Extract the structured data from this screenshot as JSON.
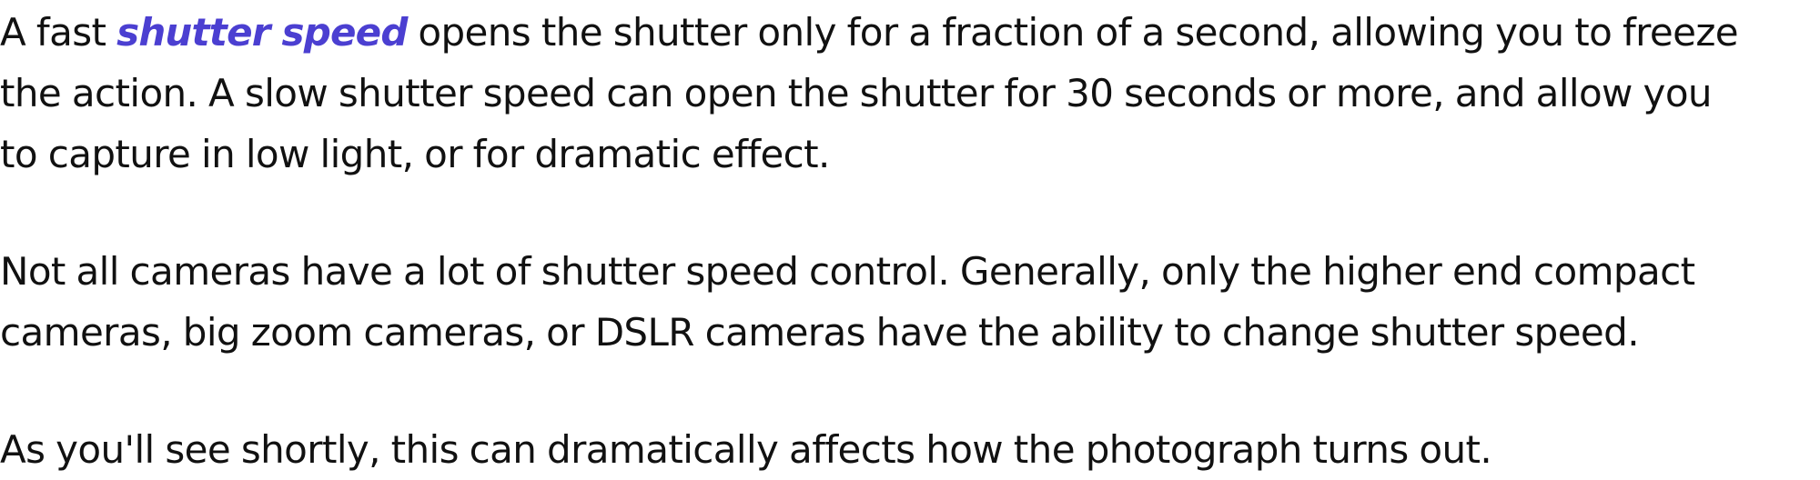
{
  "article": {
    "p1": {
      "lead": "A fast",
      "highlight": "shutter speed",
      "highlight_color": "#4b3fd1",
      "line1_rest": "opens the shutter only for a fraction of a second, allowing you to freeze",
      "line2": "the action. A slow shutter speed can open the shutter for 30 seconds or more, and allow you",
      "line3": "to capture in low light, or for dramatic effect."
    },
    "p2": {
      "line1": "Not all cameras have a lot of shutter speed control. Generally, only the higher end compact",
      "line2": "cameras, big zoom cameras, or DSLR cameras have the ability to change shutter speed."
    },
    "p3": {
      "line1": "As you'll see shortly, this can dramatically affects how the photograph turns out."
    }
  }
}
